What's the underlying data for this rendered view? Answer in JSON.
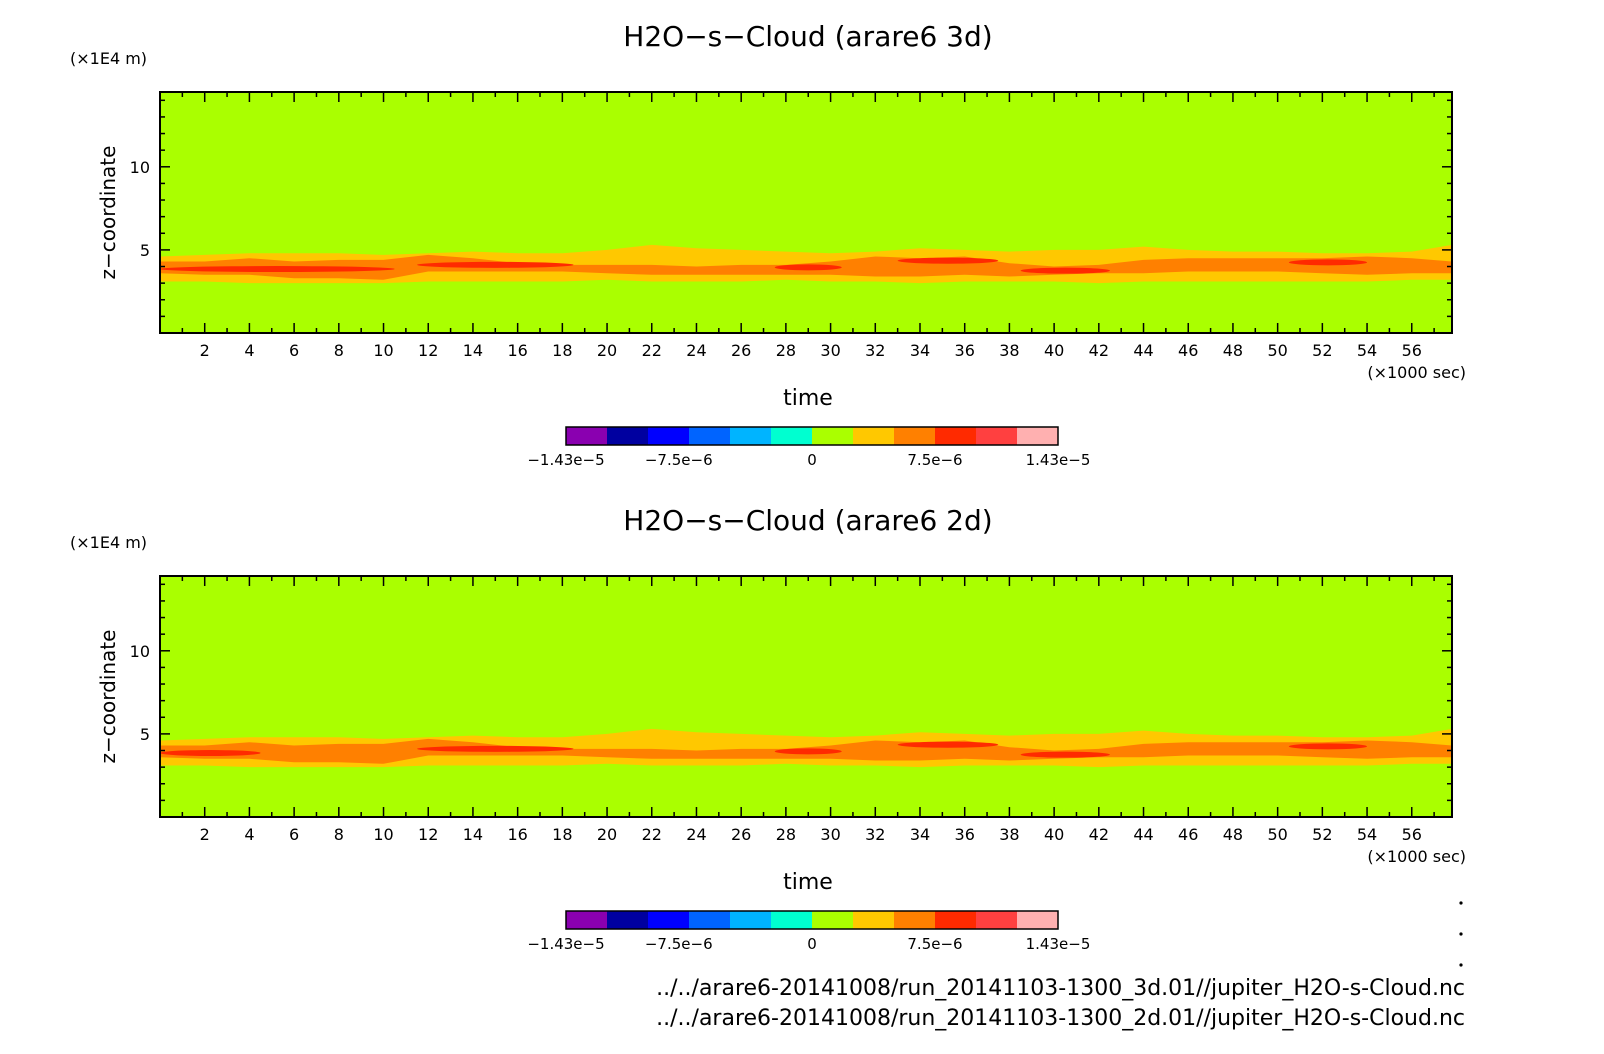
{
  "chart_data": [
    {
      "type": "heatmap",
      "title": "H2O−s−Cloud (arare6 3d)",
      "xlabel": "time",
      "x_unit": "(×1000 sec)",
      "ylabel": "z−coordinate",
      "y_unit": "(×1E4 m)",
      "xlim": [
        0,
        57.8
      ],
      "ylim": [
        0,
        14.5
      ],
      "x_ticks": [
        "2",
        "4",
        "6",
        "8",
        "10",
        "12",
        "14",
        "16",
        "18",
        "20",
        "22",
        "24",
        "26",
        "28",
        "30",
        "32",
        "34",
        "36",
        "38",
        "40",
        "42",
        "44",
        "46",
        "48",
        "50",
        "52",
        "54",
        "56"
      ],
      "y_ticks": [
        "5",
        "10"
      ],
      "grid": false,
      "colorbar": {
        "colors": [
          "#8a00b0",
          "#0000a0",
          "#0000ff",
          "#0064ff",
          "#00b4ff",
          "#00ffd0",
          "#aaff00",
          "#ffc800",
          "#ff8000",
          "#ff2a00",
          "#ff4040",
          "#ffb0b0"
        ],
        "labels": [
          "−1.43e−5",
          "−7.5e−6",
          "0",
          "7.5e−6",
          "1.43e−5"
        ]
      },
      "background_color": "#aaff00",
      "cloud_layer": {
        "x": [
          0,
          2,
          4,
          6,
          8,
          10,
          12,
          14,
          16,
          18,
          20,
          22,
          24,
          26,
          28,
          30,
          32,
          34,
          36,
          38,
          40,
          42,
          44,
          46,
          48,
          50,
          52,
          54,
          56,
          57.8
        ],
        "yellow_bottom": [
          3.1,
          3.1,
          3.0,
          3.0,
          3.0,
          3.0,
          3.1,
          3.1,
          3.1,
          3.1,
          3.2,
          3.1,
          3.1,
          3.1,
          3.2,
          3.1,
          3.1,
          3.0,
          3.1,
          3.1,
          3.1,
          3.0,
          3.1,
          3.1,
          3.1,
          3.1,
          3.1,
          3.1,
          3.2,
          3.2
        ],
        "yellow_top": [
          4.6,
          4.7,
          4.8,
          4.8,
          4.8,
          4.7,
          4.8,
          4.9,
          4.8,
          4.8,
          5.0,
          5.3,
          5.1,
          5.0,
          4.9,
          4.8,
          4.9,
          5.1,
          5.0,
          4.9,
          5.0,
          5.0,
          5.2,
          5.0,
          4.9,
          4.9,
          4.8,
          4.8,
          4.9,
          5.3
        ],
        "orange_bottom": [
          3.6,
          3.5,
          3.5,
          3.3,
          3.3,
          3.2,
          3.7,
          3.7,
          3.7,
          3.7,
          3.6,
          3.5,
          3.5,
          3.5,
          3.5,
          3.5,
          3.4,
          3.4,
          3.5,
          3.4,
          3.5,
          3.6,
          3.6,
          3.7,
          3.7,
          3.7,
          3.6,
          3.5,
          3.6,
          3.6
        ],
        "orange_top": [
          4.3,
          4.3,
          4.5,
          4.3,
          4.4,
          4.4,
          4.7,
          4.5,
          4.2,
          4.1,
          4.1,
          4.1,
          4.0,
          4.1,
          4.1,
          4.3,
          4.6,
          4.5,
          4.6,
          4.2,
          4.0,
          4.1,
          4.4,
          4.5,
          4.5,
          4.5,
          4.5,
          4.6,
          4.5,
          4.3
        ],
        "red_spots": [
          {
            "x0": 0,
            "x1": 10.5,
            "yc": 3.85,
            "h": 0.35
          },
          {
            "x0": 11.5,
            "x1": 18.5,
            "yc": 4.1,
            "h": 0.35
          },
          {
            "x0": 27.5,
            "x1": 30.5,
            "yc": 3.95,
            "h": 0.3
          },
          {
            "x0": 33,
            "x1": 37.5,
            "yc": 4.35,
            "h": 0.25
          },
          {
            "x0": 38.5,
            "x1": 42.5,
            "yc": 3.75,
            "h": 0.2
          },
          {
            "x0": 50.5,
            "x1": 54,
            "yc": 4.25,
            "h": 0.2
          }
        ]
      }
    },
    {
      "type": "heatmap",
      "title": "H2O−s−Cloud (arare6 2d)",
      "xlabel": "time",
      "x_unit": "(×1000 sec)",
      "ylabel": "z−coordinate",
      "y_unit": "(×1E4 m)",
      "xlim": [
        0,
        57.8
      ],
      "ylim": [
        0,
        14.5
      ],
      "x_ticks": [
        "2",
        "4",
        "6",
        "8",
        "10",
        "12",
        "14",
        "16",
        "18",
        "20",
        "22",
        "24",
        "26",
        "28",
        "30",
        "32",
        "34",
        "36",
        "38",
        "40",
        "42",
        "44",
        "46",
        "48",
        "50",
        "52",
        "54",
        "56"
      ],
      "y_ticks": [
        "5",
        "10"
      ],
      "grid": false,
      "colorbar": {
        "colors": [
          "#8a00b0",
          "#0000a0",
          "#0000ff",
          "#0064ff",
          "#00b4ff",
          "#00ffd0",
          "#aaff00",
          "#ffc800",
          "#ff8000",
          "#ff2a00",
          "#ff4040",
          "#ffb0b0"
        ],
        "labels": [
          "−1.43e−5",
          "−7.5e−6",
          "0",
          "7.5e−6",
          "1.43e−5"
        ]
      },
      "background_color": "#aaff00",
      "cloud_layer": {
        "x": [
          0,
          2,
          4,
          6,
          8,
          10,
          12,
          14,
          16,
          18,
          20,
          22,
          24,
          26,
          28,
          30,
          32,
          34,
          36,
          38,
          40,
          42,
          44,
          46,
          48,
          50,
          52,
          54,
          56,
          57.8
        ],
        "yellow_bottom": [
          3.1,
          3.1,
          3.0,
          3.0,
          3.0,
          3.0,
          3.1,
          3.1,
          3.1,
          3.1,
          3.2,
          3.1,
          3.1,
          3.1,
          3.2,
          3.1,
          3.1,
          3.0,
          3.1,
          3.1,
          3.1,
          3.0,
          3.1,
          3.1,
          3.1,
          3.1,
          3.1,
          3.1,
          3.2,
          3.2
        ],
        "yellow_top": [
          4.6,
          4.7,
          4.8,
          4.8,
          4.8,
          4.7,
          4.8,
          4.9,
          4.8,
          4.8,
          5.0,
          5.3,
          5.1,
          5.0,
          4.9,
          4.8,
          4.9,
          5.1,
          5.0,
          4.9,
          5.0,
          5.0,
          5.2,
          5.0,
          4.9,
          4.9,
          4.8,
          4.8,
          4.9,
          5.3
        ],
        "orange_bottom": [
          3.6,
          3.5,
          3.5,
          3.3,
          3.3,
          3.2,
          3.7,
          3.7,
          3.7,
          3.7,
          3.6,
          3.5,
          3.5,
          3.5,
          3.5,
          3.5,
          3.4,
          3.4,
          3.5,
          3.4,
          3.5,
          3.6,
          3.6,
          3.7,
          3.7,
          3.7,
          3.6,
          3.5,
          3.6,
          3.6
        ],
        "orange_top": [
          4.3,
          4.3,
          4.5,
          4.3,
          4.4,
          4.4,
          4.7,
          4.5,
          4.2,
          4.1,
          4.1,
          4.1,
          4.0,
          4.1,
          4.1,
          4.3,
          4.6,
          4.5,
          4.6,
          4.2,
          4.0,
          4.1,
          4.4,
          4.5,
          4.5,
          4.5,
          4.5,
          4.6,
          4.5,
          4.3
        ],
        "red_spots": [
          {
            "x0": 0,
            "x1": 4.5,
            "yc": 3.85,
            "h": 0.35
          },
          {
            "x0": 11.5,
            "x1": 18.5,
            "yc": 4.1,
            "h": 0.35
          },
          {
            "x0": 27.5,
            "x1": 30.5,
            "yc": 3.95,
            "h": 0.3
          },
          {
            "x0": 33,
            "x1": 37.5,
            "yc": 4.35,
            "h": 0.25
          },
          {
            "x0": 38.5,
            "x1": 42.5,
            "yc": 3.75,
            "h": 0.2
          },
          {
            "x0": 50.5,
            "x1": 54,
            "yc": 4.25,
            "h": 0.2
          }
        ]
      }
    }
  ],
  "footer": {
    "file_3d": "../../arare6-20141008/run_20141103-1300_3d.01//jupiter_H2O-s-Cloud.nc",
    "file_2d": "../../arare6-20141008/run_20141103-1300_2d.01//jupiter_H2O-s-Cloud.nc"
  }
}
